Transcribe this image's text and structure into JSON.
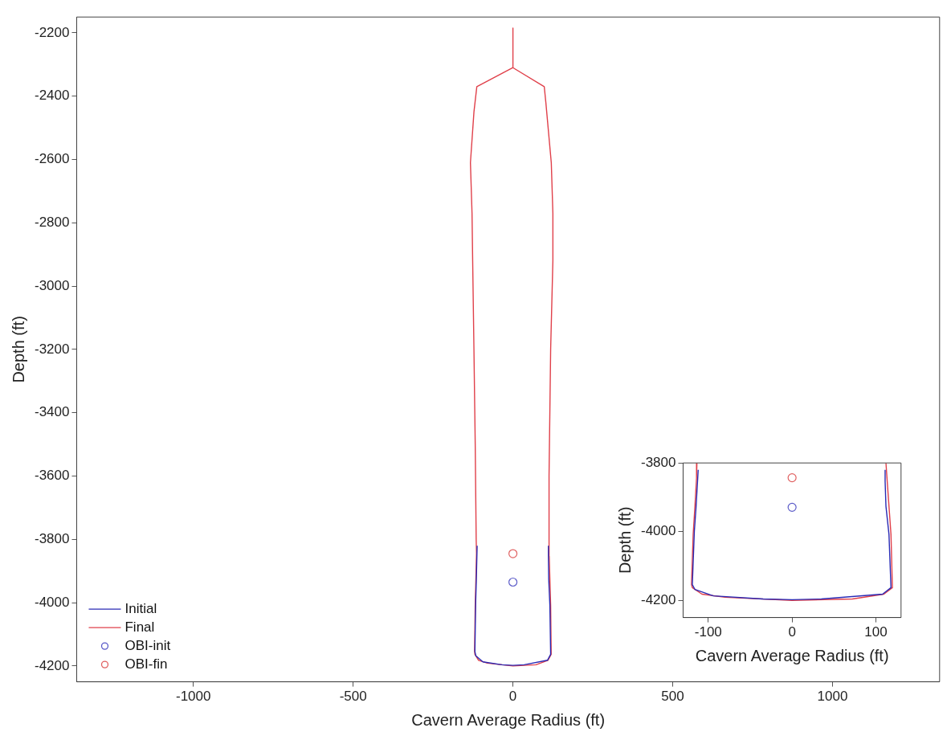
{
  "chart_data": [
    {
      "type": "line",
      "xlabel": "Cavern Average Radius (ft)",
      "ylabel": "Depth (ft)",
      "xlim": [
        -1365,
        1335
      ],
      "xticks": [
        -1000,
        -500,
        0,
        500,
        1000
      ],
      "ylim": [
        -4250,
        -2150
      ],
      "yticks": [
        -4200,
        -4000,
        -3800,
        -3600,
        -3400,
        -3200,
        -3000,
        -2800,
        -2600,
        -2400,
        -2200
      ],
      "legend": "bottom left",
      "series": [
        {
          "name": "Initial",
          "color": "#2a2ab4",
          "line_style": "solid",
          "x": [
            -112,
            -114.6,
            -116.6,
            -119,
            -116,
            -94,
            -34.6,
            0,
            35,
            108,
            118,
            115.6,
            112,
            111,
            111
          ],
          "values": [
            -3820,
            -3930,
            -3999,
            -4154,
            -4168,
            -4187,
            -4196,
            -4198,
            -4196,
            -4182,
            -4163,
            -4008,
            -3926,
            -3853,
            -3820
          ]
        },
        {
          "name": "Final",
          "color": "#e0404a",
          "line_style": "solid",
          "x": [
            0,
            0,
            -113,
            -122,
            -133,
            -128,
            -126,
            -122,
            -118,
            -115,
            -114,
            -116,
            -118,
            -120,
            -119,
            -107.5,
            -80,
            0,
            72,
            109.5,
            119.7,
            118,
            113.5,
            113,
            118,
            125,
            125,
            120,
            103,
            98,
            0
          ],
          "values": [
            -2185,
            -2310,
            -2370,
            -2450,
            -2610,
            -2770,
            -2920,
            -3200,
            -3500,
            -3800,
            -3844,
            -3930,
            -4008,
            -4154,
            -4163,
            -4182,
            -4191,
            -4200,
            -4196,
            -4182,
            -4163,
            -4008,
            -3853,
            -3600,
            -3200,
            -2920,
            -2770,
            -2610,
            -2420,
            -2370,
            -2310
          ]
        },
        {
          "name": "OBI-init",
          "type": "scatter",
          "marker": "circle",
          "color": "#5a5ac8",
          "x": [
            0
          ],
          "values": [
            -3935
          ]
        },
        {
          "name": "OBI-fin",
          "type": "scatter",
          "marker": "circle",
          "color": "#e06060",
          "x": [
            0
          ],
          "values": [
            -3845
          ]
        }
      ]
    },
    {
      "type": "line",
      "xlabel": "Cavern Average Radius (ft)",
      "ylabel": "Depth (ft)",
      "xlim": [
        -130,
        130
      ],
      "xticks": [
        -100,
        0,
        100
      ],
      "ylim": [
        -4250,
        -3800
      ],
      "yticks": [
        -4200,
        -4000,
        -3800
      ],
      "series": [
        {
          "color": "#2a2ab4",
          "line_style": "solid",
          "x": [
            -112,
            -114.6,
            -116.6,
            -119,
            -116,
            -94,
            -34.6,
            0,
            35,
            108,
            118,
            115.6,
            112,
            111,
            111
          ],
          "values": [
            -3820,
            -3930,
            -3999,
            -4154,
            -4168,
            -4187,
            -4196,
            -4198,
            -4196,
            -4182,
            -4163,
            -4008,
            -3926,
            -3853,
            -3820
          ]
        },
        {
          "color": "#e0404a",
          "line_style": "solid",
          "x": [
            -113.5,
            -114,
            -116,
            -118,
            -120,
            -119,
            -107.5,
            -80,
            0,
            72,
            109.5,
            119.7,
            118,
            113.5,
            112
          ],
          "values": [
            -3800,
            -3844,
            -3930,
            -4008,
            -4154,
            -4163,
            -4182,
            -4191,
            -4200,
            -4196,
            -4182,
            -4163,
            -4008,
            -3853,
            -3800
          ]
        },
        {
          "type": "scatter",
          "marker": "circle",
          "color": "#5a5ac8",
          "x": [
            0
          ],
          "values": [
            -3929
          ]
        },
        {
          "type": "scatter",
          "marker": "circle",
          "color": "#e06060",
          "x": [
            0
          ],
          "values": [
            -3843
          ]
        }
      ]
    }
  ]
}
